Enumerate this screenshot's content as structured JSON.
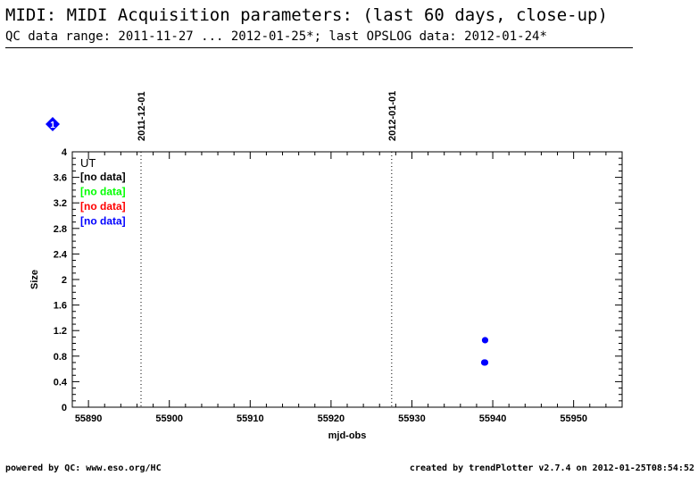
{
  "header": {
    "title": "MIDI: MIDI Acquisition parameters: (last 60 days, close-up)",
    "subtitle": "QC data range: 2011-11-27 ... 2012-01-25*; last OPSLOG data: 2012-01-24*"
  },
  "footer": {
    "left": "powered by QC: www.eso.org/HC",
    "right": "created by trendPlotter v2.7.4 on 2012-01-25T08:54:52"
  },
  "marker": {
    "label": "1",
    "color": "#0000ff"
  },
  "chart_data": {
    "type": "scatter",
    "xlabel": "mjd-obs",
    "ylabel": "Size",
    "xlim": [
      55888,
      55956
    ],
    "ylim": [
      0,
      4
    ],
    "xticks": [
      55890,
      55900,
      55910,
      55920,
      55930,
      55940,
      55950
    ],
    "yticks": [
      0,
      0.4,
      0.8,
      1.2,
      1.6,
      2,
      2.4,
      2.8,
      3.2,
      3.6,
      4
    ],
    "grid": false,
    "vlines": [
      {
        "x": 55896.5,
        "label": "2011-12-01"
      },
      {
        "x": 55927.5,
        "label": "2012-01-01"
      }
    ],
    "legend": {
      "title": "UT",
      "position": "top-left",
      "entries": [
        {
          "label": "[no data]",
          "color": "#000000"
        },
        {
          "label": "[no data]",
          "color": "#00ff00"
        },
        {
          "label": "[no data]",
          "color": "#ff0000"
        },
        {
          "label": "[no data]",
          "color": "#0000ff"
        }
      ]
    },
    "series": [
      {
        "color": "#0000ff",
        "points": [
          {
            "x": 55939.05,
            "y": 1.05
          },
          {
            "x": 55939.05,
            "y": 0.7
          },
          {
            "x": 55938.95,
            "y": 0.7
          }
        ]
      }
    ]
  }
}
